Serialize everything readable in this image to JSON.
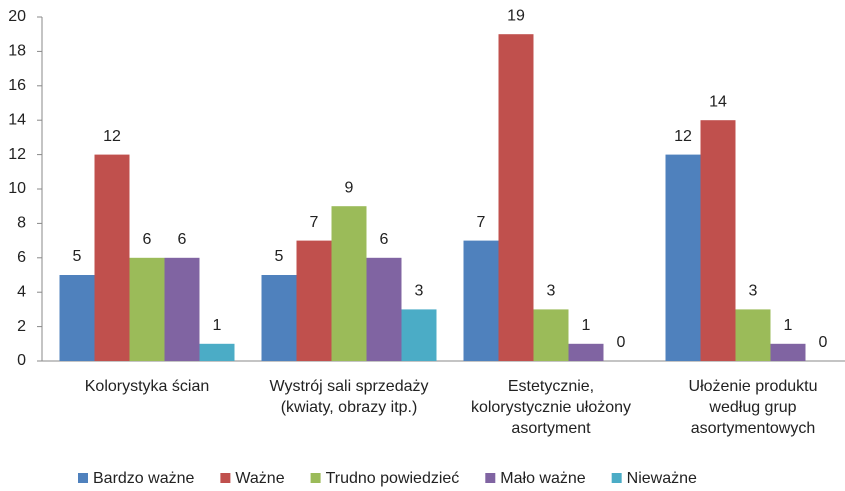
{
  "chart_data": {
    "type": "bar",
    "categories": [
      [
        "Kolorystyka ścian"
      ],
      [
        "Wystrój sali sprzedaży",
        "(kwiaty, obrazy itp.)"
      ],
      [
        "Estetycznie,",
        "kolorystycznie ułożony",
        "asortyment"
      ],
      [
        "Ułożenie produktu",
        "według grup",
        "asortymentowych"
      ]
    ],
    "series": [
      {
        "name": "Bardzo ważne",
        "color": "#4f81bd",
        "values": [
          5,
          5,
          7,
          12
        ]
      },
      {
        "name": "Ważne",
        "color": "#c0504d",
        "values": [
          12,
          7,
          19,
          14
        ]
      },
      {
        "name": "Trudno powiedzieć",
        "color": "#9bbb59",
        "values": [
          6,
          9,
          3,
          3
        ]
      },
      {
        "name": "Mało ważne",
        "color": "#8064a2",
        "values": [
          6,
          6,
          1,
          1
        ]
      },
      {
        "name": "Nieważne",
        "color": "#4bacc6",
        "values": [
          1,
          3,
          0,
          0
        ]
      }
    ],
    "ylim": [
      0,
      20
    ],
    "yticks": [
      0,
      2,
      4,
      6,
      8,
      10,
      12,
      14,
      16,
      18,
      20
    ],
    "grid": false,
    "legend": "bottom"
  }
}
